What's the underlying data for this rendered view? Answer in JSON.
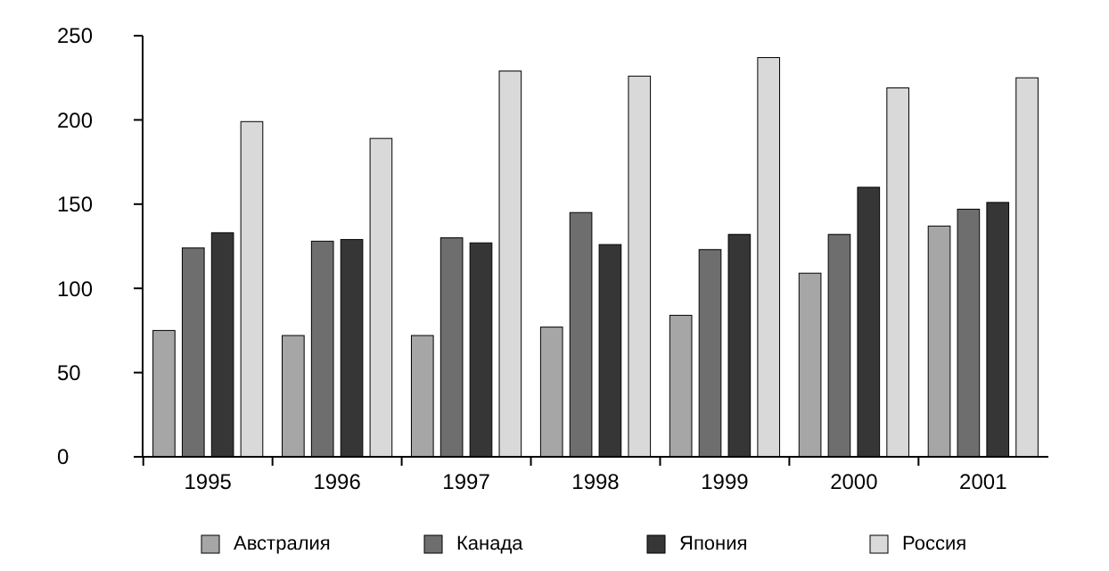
{
  "chart_data": {
    "type": "bar",
    "categories": [
      "1995",
      "1996",
      "1997",
      "1998",
      "1999",
      "2000",
      "2001"
    ],
    "series": [
      {
        "name": "Австралия",
        "color": "#a6a6a6",
        "values": [
          75,
          72,
          72,
          77,
          84,
          109,
          137
        ]
      },
      {
        "name": "Канада",
        "color": "#6e6e6e",
        "values": [
          124,
          128,
          130,
          145,
          123,
          132,
          147
        ]
      },
      {
        "name": "Япония",
        "color": "#363636",
        "values": [
          133,
          129,
          127,
          126,
          132,
          160,
          151
        ]
      },
      {
        "name": "Россия",
        "color": "#d9d9d9",
        "values": [
          199,
          189,
          229,
          226,
          237,
          219,
          225
        ]
      }
    ],
    "ylim": [
      0,
      250
    ],
    "yticks": [
      0,
      50,
      100,
      150,
      200,
      250
    ],
    "grid": false,
    "legend": "bottom"
  }
}
